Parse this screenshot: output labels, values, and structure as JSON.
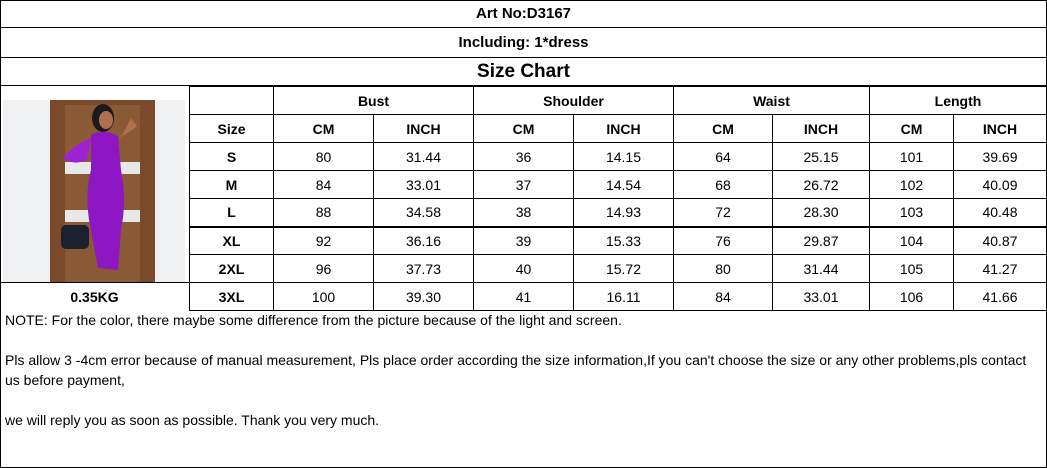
{
  "art_no": "Art No:D3167",
  "including": "Including:  1*dress",
  "title": "Size Chart",
  "weight": "0.35KG",
  "groups": [
    "Bust",
    "Shoulder",
    "Waist",
    "Length"
  ],
  "size_label": "Size",
  "unit_labels": [
    "CM",
    "INCH",
    "CM",
    "INCH",
    "CM",
    "INCH",
    "CM",
    "INCH"
  ],
  "rows": [
    [
      "S",
      "80",
      "31.44",
      "36",
      "14.15",
      "64",
      "25.15",
      "101",
      "39.69"
    ],
    [
      "M",
      "84",
      "33.01",
      "37",
      "14.54",
      "68",
      "26.72",
      "102",
      "40.09"
    ],
    [
      "L",
      "88",
      "34.58",
      "38",
      "14.93",
      "72",
      "28.30",
      "103",
      "40.48"
    ],
    [
      "XL",
      "92",
      "36.16",
      "39",
      "15.33",
      "76",
      "29.87",
      "104",
      "40.87"
    ],
    [
      "2XL",
      "96",
      "37.73",
      "40",
      "15.72",
      "80",
      "31.44",
      "105",
      "41.27"
    ],
    [
      "3XL",
      "100",
      "39.30",
      "41",
      "16.11",
      "84",
      "33.01",
      "106",
      "41.66"
    ]
  ],
  "notes": [
    "NOTE:  For the color, there maybe some difference from the picture because of the light and screen.",
    "Pls allow 3 -4cm error because of manual measurement, Pls place order according the size information,If you can't choose the size or any other problems,pls contact us before payment,",
    "we will reply you as soon as possible. Thank you very much."
  ],
  "colors": {
    "dress": "#8e17c4",
    "door": "#7a4a2a"
  }
}
